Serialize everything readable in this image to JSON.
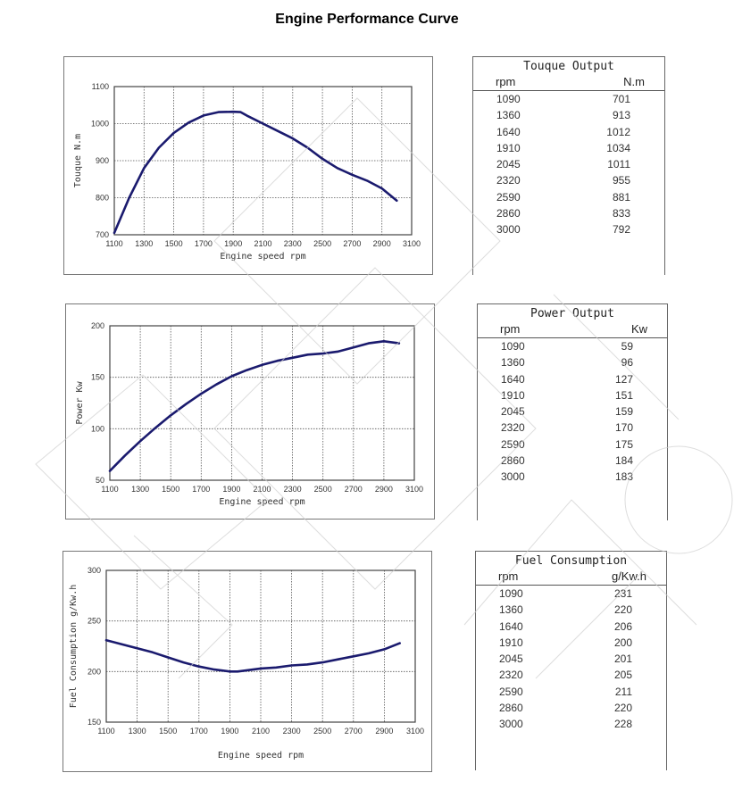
{
  "page": {
    "title": "Engine Performance Curve"
  },
  "chart_data": [
    {
      "type": "line",
      "title": "Touque Output",
      "xlabel": "Engine speed rpm",
      "ylabel": "Touque N.m",
      "x_ticks": [
        1100,
        1300,
        1500,
        1700,
        1900,
        2100,
        2300,
        2500,
        2700,
        2900,
        3100
      ],
      "y_ticks": [
        700,
        800,
        900,
        1000,
        1100
      ],
      "xlim": [
        1100,
        3100
      ],
      "ylim": [
        700,
        1100
      ],
      "grid": true,
      "line_color": "#1a1a6e",
      "x": [
        1090,
        1360,
        1640,
        1910,
        2045,
        2320,
        2590,
        2860,
        3000
      ],
      "y": [
        701,
        913,
        1012,
        1034,
        1011,
        955,
        881,
        833,
        792
      ],
      "curve": [
        [
          1100,
          705
        ],
        [
          1200,
          800
        ],
        [
          1300,
          880
        ],
        [
          1400,
          935
        ],
        [
          1500,
          975
        ],
        [
          1600,
          1003
        ],
        [
          1700,
          1022
        ],
        [
          1800,
          1031
        ],
        [
          1900,
          1032
        ],
        [
          1950,
          1031
        ],
        [
          2000,
          1020
        ],
        [
          2100,
          1000
        ],
        [
          2200,
          980
        ],
        [
          2300,
          960
        ],
        [
          2400,
          935
        ],
        [
          2500,
          905
        ],
        [
          2600,
          880
        ],
        [
          2700,
          862
        ],
        [
          2800,
          846
        ],
        [
          2900,
          825
        ],
        [
          3000,
          792
        ]
      ]
    },
    {
      "type": "line",
      "title": "Power Output",
      "xlabel": "Engine speed rpm",
      "ylabel": "Power Kw",
      "x_ticks": [
        1100,
        1300,
        1500,
        1700,
        1900,
        2100,
        2300,
        2500,
        2700,
        2900,
        3100
      ],
      "y_ticks": [
        50,
        100,
        150,
        200
      ],
      "xlim": [
        1100,
        3100
      ],
      "ylim": [
        50,
        200
      ],
      "grid": true,
      "line_color": "#1a1a6e",
      "x": [
        1090,
        1360,
        1640,
        1910,
        2045,
        2320,
        2590,
        2860,
        3000
      ],
      "y": [
        59,
        96,
        127,
        151,
        159,
        170,
        175,
        184,
        183
      ],
      "curve": [
        [
          1100,
          59
        ],
        [
          1200,
          74
        ],
        [
          1300,
          88
        ],
        [
          1400,
          101
        ],
        [
          1500,
          113
        ],
        [
          1600,
          124
        ],
        [
          1700,
          134
        ],
        [
          1800,
          143
        ],
        [
          1900,
          151
        ],
        [
          2000,
          157
        ],
        [
          2100,
          162
        ],
        [
          2200,
          166
        ],
        [
          2300,
          169
        ],
        [
          2400,
          172
        ],
        [
          2500,
          173
        ],
        [
          2600,
          175
        ],
        [
          2700,
          179
        ],
        [
          2800,
          183
        ],
        [
          2900,
          185
        ],
        [
          3000,
          183
        ]
      ]
    },
    {
      "type": "line",
      "title": "Fuel Consumption",
      "xlabel": "Engine speed rpm",
      "ylabel": "Fuel Consumption g/Kw.h",
      "x_ticks": [
        1100,
        1300,
        1500,
        1700,
        1900,
        2100,
        2300,
        2500,
        2700,
        2900,
        3100
      ],
      "y_ticks": [
        150,
        200,
        250,
        300
      ],
      "xlim": [
        1100,
        3100
      ],
      "ylim": [
        150,
        300
      ],
      "grid": true,
      "line_color": "#1a1a6e",
      "x": [
        1090,
        1360,
        1640,
        1910,
        2045,
        2320,
        2590,
        2860,
        3000
      ],
      "y": [
        231,
        220,
        206,
        200,
        201,
        205,
        211,
        220,
        228
      ],
      "curve": [
        [
          1100,
          231
        ],
        [
          1200,
          227
        ],
        [
          1300,
          223
        ],
        [
          1400,
          219
        ],
        [
          1500,
          214
        ],
        [
          1600,
          209
        ],
        [
          1700,
          205
        ],
        [
          1800,
          202
        ],
        [
          1900,
          200
        ],
        [
          1950,
          200
        ],
        [
          2000,
          201
        ],
        [
          2100,
          203
        ],
        [
          2200,
          204
        ],
        [
          2300,
          206
        ],
        [
          2400,
          207
        ],
        [
          2500,
          209
        ],
        [
          2600,
          212
        ],
        [
          2700,
          215
        ],
        [
          2800,
          218
        ],
        [
          2900,
          222
        ],
        [
          3000,
          228
        ]
      ]
    }
  ],
  "tables": [
    {
      "title": "Touque Output",
      "col_rpm": "rpm",
      "col_unit": "N.m",
      "rows": [
        [
          "1090",
          "701"
        ],
        [
          "1360",
          "913"
        ],
        [
          "1640",
          "1012"
        ],
        [
          "1910",
          "1034"
        ],
        [
          "2045",
          "1011"
        ],
        [
          "2320",
          "955"
        ],
        [
          "2590",
          "881"
        ],
        [
          "2860",
          "833"
        ],
        [
          "3000",
          "792"
        ]
      ]
    },
    {
      "title": "Power Output",
      "col_rpm": "rpm",
      "col_unit": "Kw",
      "rows": [
        [
          "1090",
          "59"
        ],
        [
          "1360",
          "96"
        ],
        [
          "1640",
          "127"
        ],
        [
          "1910",
          "151"
        ],
        [
          "2045",
          "159"
        ],
        [
          "2320",
          "170"
        ],
        [
          "2590",
          "175"
        ],
        [
          "2860",
          "184"
        ],
        [
          "3000",
          "183"
        ]
      ]
    },
    {
      "title": "Fuel Consumption",
      "col_rpm": "rpm",
      "col_unit": "g/Kw.h",
      "rows": [
        [
          "1090",
          "231"
        ],
        [
          "1360",
          "220"
        ],
        [
          "1640",
          "206"
        ],
        [
          "1910",
          "200"
        ],
        [
          "2045",
          "201"
        ],
        [
          "2320",
          "205"
        ],
        [
          "2590",
          "211"
        ],
        [
          "2860",
          "220"
        ],
        [
          "3000",
          "228"
        ]
      ]
    }
  ]
}
